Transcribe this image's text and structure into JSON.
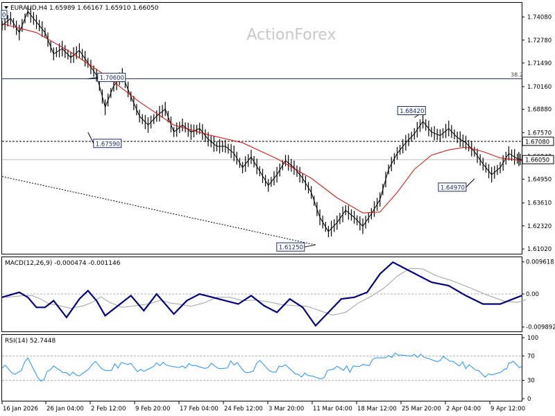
{
  "chart_data": {
    "type": "line",
    "watermark": "ActionForex",
    "colors": {
      "price": "#000000",
      "ma": "#e00000",
      "macd": "#000080",
      "signal": "#a0a0a0",
      "rsi": "#1e90ff",
      "grid": "#c8c8c8",
      "trendline": "#000000"
    },
    "x_ticks": [
      "16 Jan 2026",
      "26 Jan 04:00",
      "2 Feb 12:00",
      "9 Feb 20:00",
      "17 Feb 04:00",
      "24 Feb 12:00",
      "3 Mar 20:00",
      "11 Mar 04:00",
      "18 Mar 12:00",
      "25 Mar 20:00",
      "2 Apr 04:00",
      "9 Apr 12:00"
    ],
    "main": {
      "header": "EURAUD,H4  1.65989 1.66167 1.65910 1.66050",
      "y_ticks": [
        "1.74080",
        "1.72780",
        "1.71490",
        "1.70160",
        "1.68880",
        "1.67570",
        "1.66240",
        "1.64950",
        "1.63610",
        "1.62320",
        "1.61020"
      ],
      "ylim": [
        1.6075,
        1.7488
      ],
      "current_price": "1.66050",
      "level_label": "1.67080",
      "fib_label": "38.2",
      "left_edge_label": "0",
      "price_path": [
        [
          0,
          1.736
        ],
        [
          2,
          1.74
        ],
        [
          4,
          1.732
        ],
        [
          6,
          1.744
        ],
        [
          8,
          1.738
        ],
        [
          10,
          1.732
        ],
        [
          12,
          1.72
        ],
        [
          14,
          1.723
        ],
        [
          16,
          1.718
        ],
        [
          18,
          1.722
        ],
        [
          20,
          1.715
        ],
        [
          22,
          1.708
        ],
        [
          24,
          1.69
        ],
        [
          26,
          1.702
        ],
        [
          28,
          1.708
        ],
        [
          30,
          1.696
        ],
        [
          32,
          1.685
        ],
        [
          34,
          1.68
        ],
        [
          36,
          1.685
        ],
        [
          38,
          1.689
        ],
        [
          40,
          1.676
        ],
        [
          42,
          1.68
        ],
        [
          44,
          1.676
        ],
        [
          46,
          1.678
        ],
        [
          48,
          1.672
        ],
        [
          50,
          1.668
        ],
        [
          52,
          1.668
        ],
        [
          54,
          1.664
        ],
        [
          56,
          1.656
        ],
        [
          58,
          1.662
        ],
        [
          60,
          1.654
        ],
        [
          62,
          1.646
        ],
        [
          64,
          1.652
        ],
        [
          66,
          1.66
        ],
        [
          68,
          1.656
        ],
        [
          70,
          1.65
        ],
        [
          72,
          1.642
        ],
        [
          74,
          1.628
        ],
        [
          76,
          1.62
        ],
        [
          78,
          1.625
        ],
        [
          80,
          1.632
        ],
        [
          82,
          1.628
        ],
        [
          84,
          1.623
        ],
        [
          86,
          1.63
        ],
        [
          88,
          1.638
        ],
        [
          90,
          1.655
        ],
        [
          92,
          1.664
        ],
        [
          94,
          1.67
        ],
        [
          96,
          1.675
        ],
        [
          98,
          1.682
        ],
        [
          100,
          1.676
        ],
        [
          102,
          1.674
        ],
        [
          104,
          1.678
        ],
        [
          106,
          1.673
        ],
        [
          108,
          1.67
        ],
        [
          110,
          1.665
        ],
        [
          112,
          1.658
        ],
        [
          114,
          1.652
        ],
        [
          116,
          1.656
        ],
        [
          118,
          1.664
        ],
        [
          120,
          1.661
        ],
        [
          121,
          1.6605
        ]
      ],
      "ma_path": [
        [
          0,
          1.737
        ],
        [
          8,
          1.732
        ],
        [
          16,
          1.721
        ],
        [
          24,
          1.708
        ],
        [
          32,
          1.693
        ],
        [
          40,
          1.68
        ],
        [
          48,
          1.6745
        ],
        [
          56,
          1.67
        ],
        [
          64,
          1.661
        ],
        [
          72,
          1.65
        ],
        [
          78,
          1.639
        ],
        [
          84,
          1.6305
        ],
        [
          88,
          1.631
        ],
        [
          92,
          1.642
        ],
        [
          96,
          1.655
        ],
        [
          100,
          1.663
        ],
        [
          104,
          1.666
        ],
        [
          108,
          1.6675
        ],
        [
          112,
          1.665
        ],
        [
          116,
          1.6615
        ],
        [
          121,
          1.66
        ]
      ],
      "trendline": [
        [
          0,
          1.651
        ],
        [
          73,
          1.6125
        ]
      ],
      "callouts": [
        {
          "text": "1.70600",
          "x": 20,
          "y": 1.706
        },
        {
          "text": "1.67590",
          "x": 20,
          "y": 1.6759
        },
        {
          "text": "1.68420",
          "x": 96,
          "y": 1.6842
        },
        {
          "text": "1.64970",
          "x": 110,
          "y": 1.6497
        },
        {
          "text": "1.61250",
          "x": 73,
          "y": 1.6125
        }
      ]
    },
    "macd": {
      "header": "MACD(12,26,9) -0.000474 -0.001146",
      "y_ticks": [
        "0.009618",
        "0.00",
        "-0.009892"
      ],
      "ylim": [
        -0.0112,
        0.011
      ],
      "macd_path": [
        [
          0,
          -0.001
        ],
        [
          4,
          0.0005
        ],
        [
          6,
          -0.001
        ],
        [
          8,
          -0.004
        ],
        [
          10,
          -0.004
        ],
        [
          12,
          -0.002
        ],
        [
          15,
          -0.007
        ],
        [
          18,
          -0.0015
        ],
        [
          20,
          0.001
        ],
        [
          22,
          -0.002
        ],
        [
          24,
          -0.0065
        ],
        [
          27,
          -0.0035
        ],
        [
          30,
          -0.0005
        ],
        [
          33,
          -0.005
        ],
        [
          36,
          0.0
        ],
        [
          38,
          -0.003
        ],
        [
          40,
          -0.006
        ],
        [
          43,
          -0.002
        ],
        [
          46,
          0.0
        ],
        [
          49,
          -0.001
        ],
        [
          52,
          -0.002
        ],
        [
          55,
          -0.003
        ],
        [
          58,
          -0.0005
        ],
        [
          61,
          -0.0035
        ],
        [
          64,
          -0.0055
        ],
        [
          67,
          -0.0015
        ],
        [
          70,
          -0.004
        ],
        [
          73,
          -0.0095
        ],
        [
          76,
          -0.0055
        ],
        [
          79,
          -0.0015
        ],
        [
          82,
          -0.001
        ],
        [
          85,
          0.0005
        ],
        [
          88,
          0.006
        ],
        [
          91,
          0.0095
        ],
        [
          94,
          0.0075
        ],
        [
          97,
          0.0055
        ],
        [
          100,
          0.0035
        ],
        [
          104,
          0.0025
        ],
        [
          108,
          -0.0005
        ],
        [
          112,
          -0.003
        ],
        [
          116,
          -0.003
        ],
        [
          119,
          -0.0015
        ],
        [
          121,
          -0.0005
        ]
      ]
    },
    "rsi": {
      "header": "RSI(14) 52.7448",
      "y_ticks": [
        "100",
        "70",
        "30",
        "0"
      ],
      "ylim": [
        0,
        100
      ],
      "levels": [
        70,
        30
      ],
      "rsi_path": [
        [
          0,
          55
        ],
        [
          3,
          40
        ],
        [
          6,
          62
        ],
        [
          9,
          30
        ],
        [
          12,
          50
        ],
        [
          15,
          45
        ],
        [
          18,
          35
        ],
        [
          21,
          60
        ],
        [
          24,
          45
        ],
        [
          27,
          55
        ],
        [
          30,
          58
        ],
        [
          33,
          40
        ],
        [
          36,
          60
        ],
        [
          39,
          50
        ],
        [
          42,
          56
        ],
        [
          45,
          52
        ],
        [
          48,
          55
        ],
        [
          51,
          48
        ],
        [
          54,
          60
        ],
        [
          57,
          42
        ],
        [
          60,
          58
        ],
        [
          63,
          45
        ],
        [
          66,
          52
        ],
        [
          69,
          42
        ],
        [
          72,
          35
        ],
        [
          75,
          38
        ],
        [
          78,
          52
        ],
        [
          81,
          48
        ],
        [
          84,
          56
        ],
        [
          87,
          62
        ],
        [
          90,
          72
        ],
        [
          93,
          68
        ],
        [
          96,
          75
        ],
        [
          99,
          64
        ],
        [
          102,
          66
        ],
        [
          105,
          60
        ],
        [
          108,
          54
        ],
        [
          111,
          46
        ],
        [
          114,
          34
        ],
        [
          117,
          50
        ],
        [
          119,
          58
        ],
        [
          121,
          53
        ]
      ]
    }
  }
}
